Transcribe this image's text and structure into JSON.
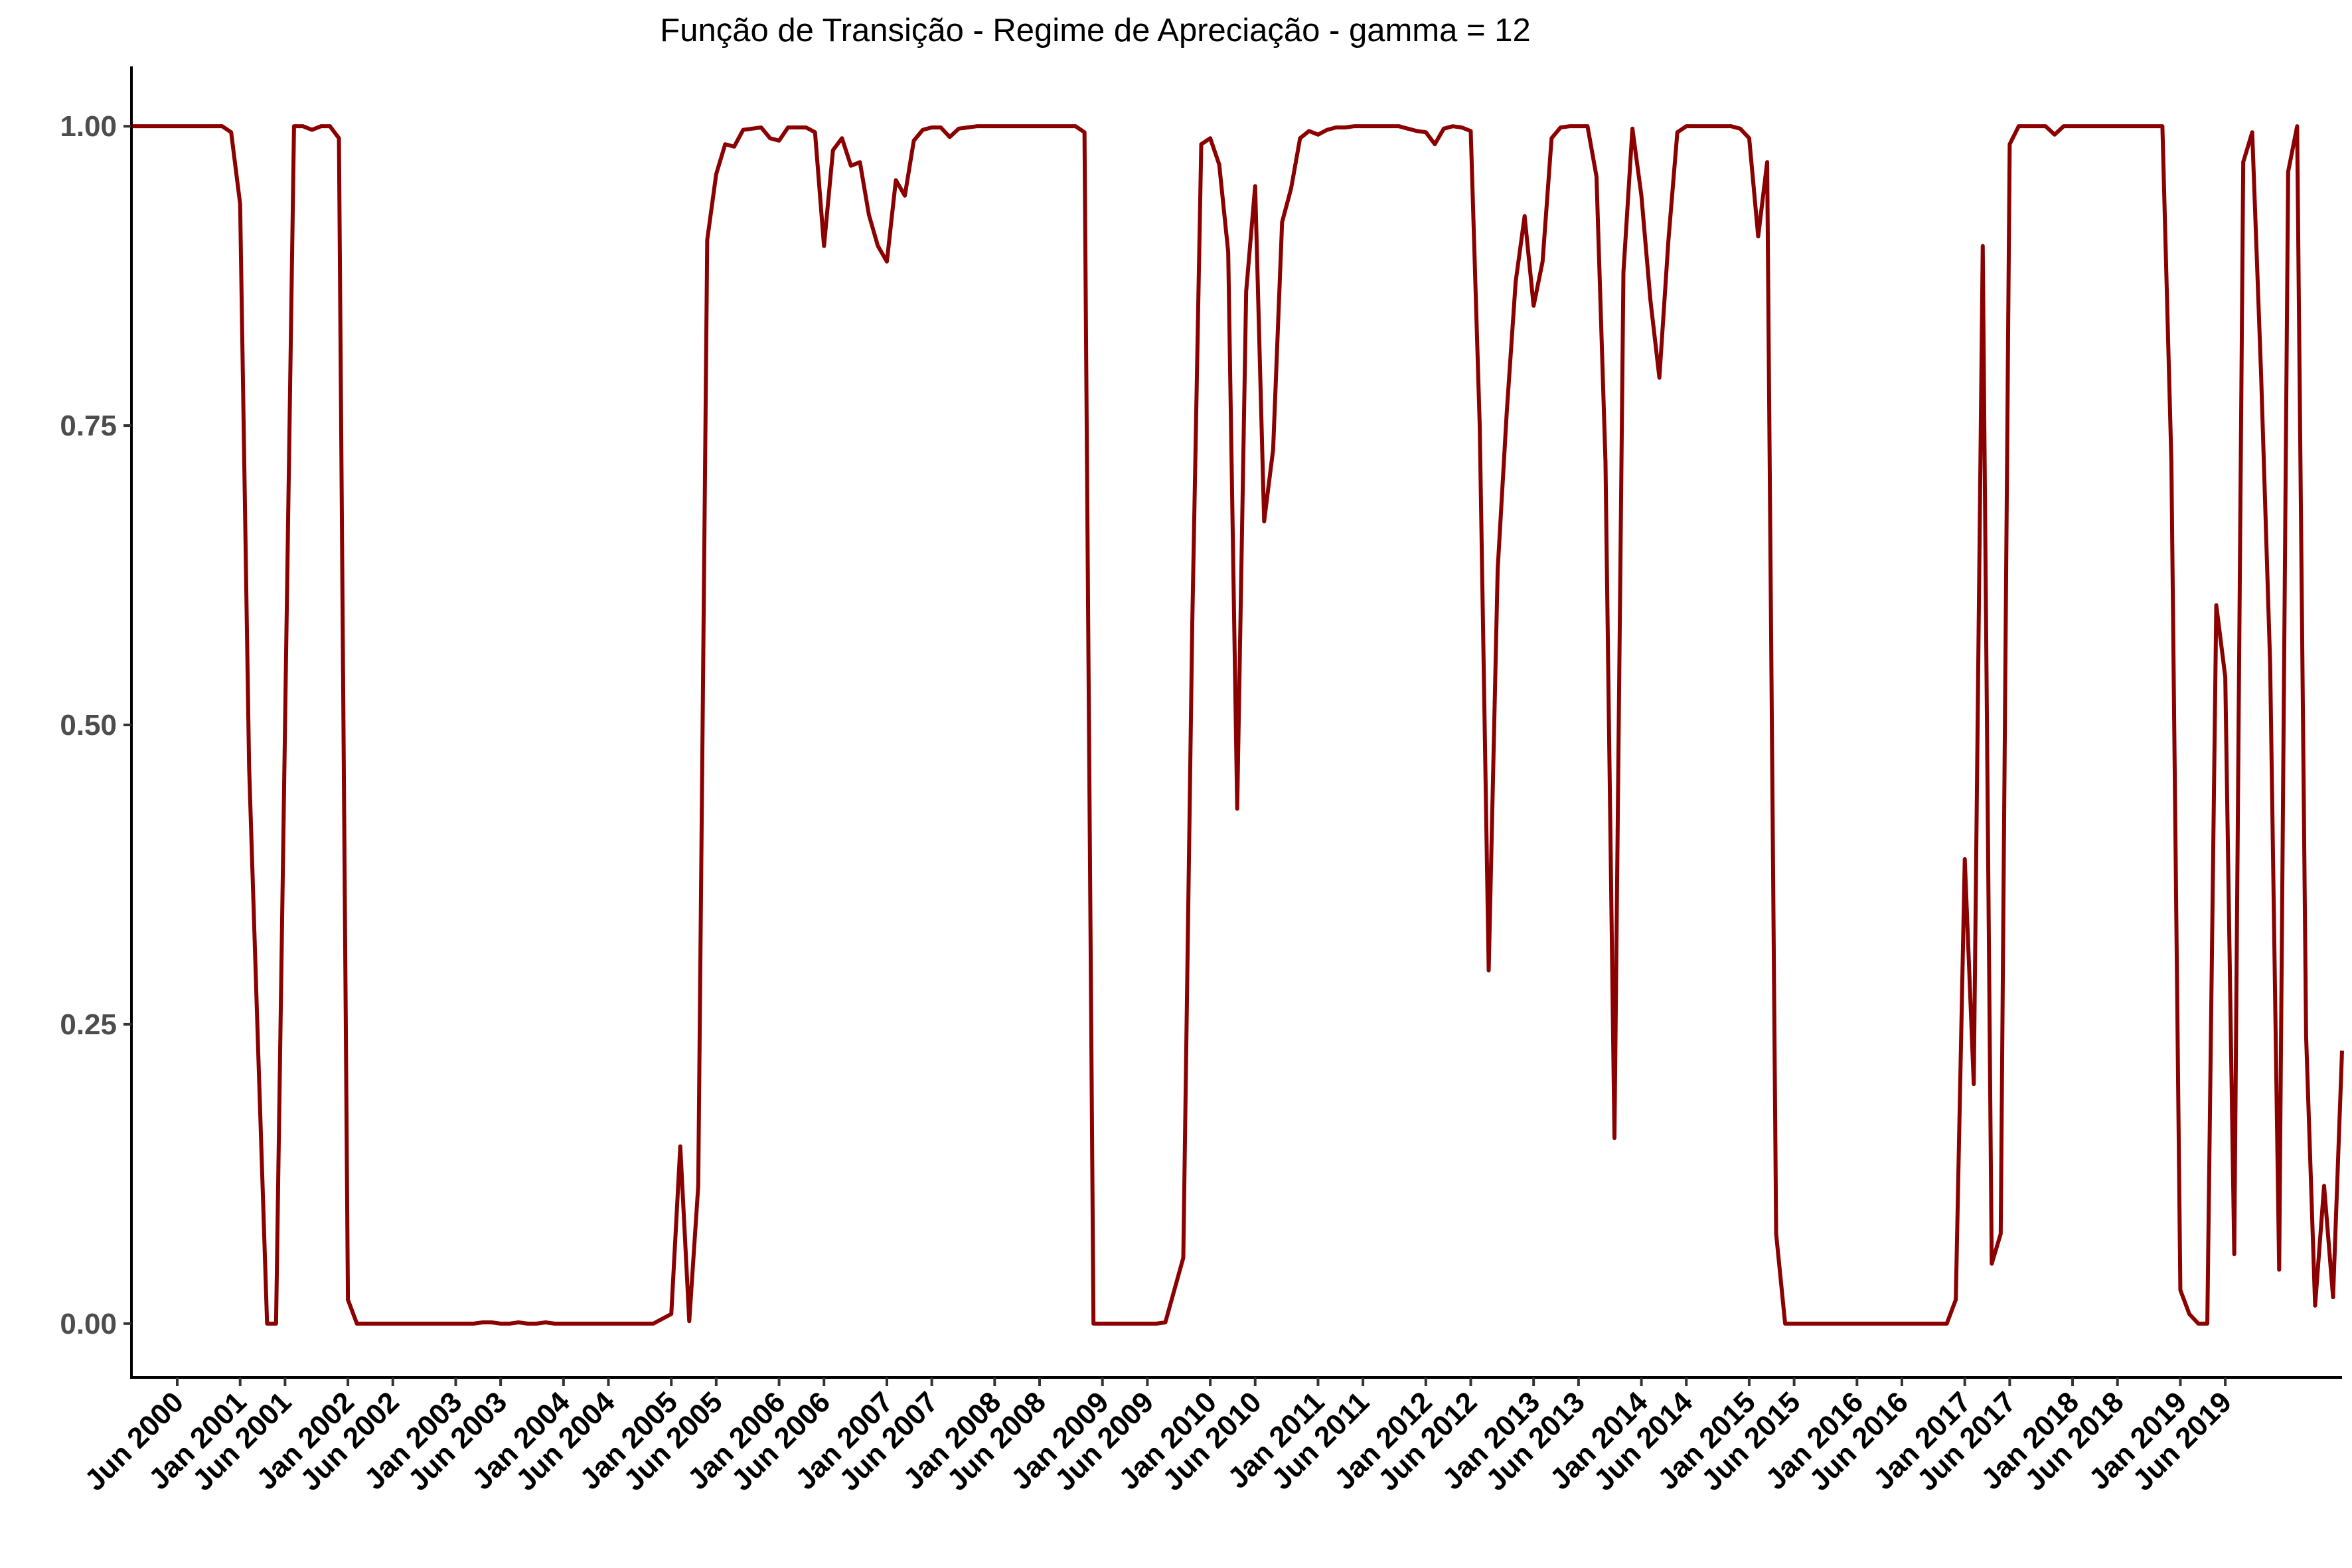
{
  "chart_data": {
    "type": "line",
    "title": "Função de Transição - Regime de Apreciação - gamma = 12",
    "xlabel": "",
    "ylabel": "",
    "ylim": [
      -0.045,
      1.05
    ],
    "grid": false,
    "legend": "none",
    "colors": {
      "line": "#8b0000",
      "axis": "#000000",
      "ytick_text": "#4d4d4d",
      "background": "#ffffff"
    },
    "y_ticks": [
      {
        "value": 0.0,
        "label": "0.00"
      },
      {
        "value": 0.25,
        "label": "0.25"
      },
      {
        "value": 0.5,
        "label": "0.50"
      },
      {
        "value": 0.75,
        "label": "0.75"
      },
      {
        "value": 1.0,
        "label": "1.00"
      }
    ],
    "x_ticks": [
      {
        "date": "2000-06",
        "label": "Jun 2000"
      },
      {
        "date": "2001-01",
        "label": "Jan 2001"
      },
      {
        "date": "2001-06",
        "label": "Jun 2001"
      },
      {
        "date": "2002-01",
        "label": "Jan 2002"
      },
      {
        "date": "2002-06",
        "label": "Jun 2002"
      },
      {
        "date": "2003-01",
        "label": "Jan 2003"
      },
      {
        "date": "2003-06",
        "label": "Jun 2003"
      },
      {
        "date": "2004-01",
        "label": "Jan 2004"
      },
      {
        "date": "2004-06",
        "label": "Jun 2004"
      },
      {
        "date": "2005-01",
        "label": "Jan 2005"
      },
      {
        "date": "2005-06",
        "label": "Jun 2005"
      },
      {
        "date": "2006-01",
        "label": "Jan 2006"
      },
      {
        "date": "2006-06",
        "label": "Jun 2006"
      },
      {
        "date": "2007-01",
        "label": "Jan 2007"
      },
      {
        "date": "2007-06",
        "label": "Jun 2007"
      },
      {
        "date": "2008-01",
        "label": "Jan 2008"
      },
      {
        "date": "2008-06",
        "label": "Jun 2008"
      },
      {
        "date": "2009-01",
        "label": "Jan 2009"
      },
      {
        "date": "2009-06",
        "label": "Jun 2009"
      },
      {
        "date": "2010-01",
        "label": "Jan 2010"
      },
      {
        "date": "2010-06",
        "label": "Jun 2010"
      },
      {
        "date": "2011-01",
        "label": "Jan 2011"
      },
      {
        "date": "2011-06",
        "label": "Jun 2011"
      },
      {
        "date": "2012-01",
        "label": "Jan 2012"
      },
      {
        "date": "2012-06",
        "label": "Jun 2012"
      },
      {
        "date": "2013-01",
        "label": "Jan 2013"
      },
      {
        "date": "2013-06",
        "label": "Jun 2013"
      },
      {
        "date": "2014-01",
        "label": "Jan 2014"
      },
      {
        "date": "2014-06",
        "label": "Jun 2014"
      },
      {
        "date": "2015-01",
        "label": "Jan 2015"
      },
      {
        "date": "2015-06",
        "label": "Jun 2015"
      },
      {
        "date": "2016-01",
        "label": "Jan 2016"
      },
      {
        "date": "2016-06",
        "label": "Jun 2016"
      },
      {
        "date": "2017-01",
        "label": "Jan 2017"
      },
      {
        "date": "2017-06",
        "label": "Jun 2017"
      },
      {
        "date": "2018-01",
        "label": "Jan 2018"
      },
      {
        "date": "2018-06",
        "label": "Jun 2018"
      },
      {
        "date": "2019-01",
        "label": "Jan 2019"
      },
      {
        "date": "2019-06",
        "label": "Jun 2019"
      }
    ],
    "series": [
      {
        "points": [
          [
            "2000-01",
            1.0
          ],
          [
            "2000-02",
            1.0
          ],
          [
            "2000-03",
            1.0
          ],
          [
            "2000-04",
            1.0
          ],
          [
            "2000-05",
            1.0
          ],
          [
            "2000-06",
            1.0
          ],
          [
            "2000-07",
            1.0
          ],
          [
            "2000-08",
            1.0
          ],
          [
            "2000-09",
            1.0
          ],
          [
            "2000-10",
            1.0
          ],
          [
            "2000-11",
            1.0
          ],
          [
            "2000-12",
            0.995
          ],
          [
            "2001-01",
            0.935
          ],
          [
            "2001-02",
            0.465
          ],
          [
            "2001-03",
            0.23
          ],
          [
            "2001-04",
            0.0
          ],
          [
            "2001-05",
            0.0
          ],
          [
            "2001-06",
            0.5
          ],
          [
            "2001-07",
            1.0
          ],
          [
            "2001-08",
            1.0
          ],
          [
            "2001-09",
            0.997
          ],
          [
            "2001-10",
            1.0
          ],
          [
            "2001-11",
            1.0
          ],
          [
            "2001-12",
            0.99
          ],
          [
            "2002-01",
            0.02
          ],
          [
            "2002-02",
            0.0
          ],
          [
            "2002-03",
            0.0
          ],
          [
            "2002-04",
            0.0
          ],
          [
            "2002-05",
            0.0
          ],
          [
            "2002-06",
            0.0
          ],
          [
            "2002-07",
            0.0
          ],
          [
            "2002-08",
            0.0
          ],
          [
            "2002-09",
            0.0
          ],
          [
            "2002-10",
            0.0
          ],
          [
            "2002-11",
            0.0
          ],
          [
            "2002-12",
            0.0
          ],
          [
            "2003-01",
            0.0
          ],
          [
            "2003-02",
            0.0
          ],
          [
            "2003-03",
            0.0
          ],
          [
            "2003-04",
            0.001
          ],
          [
            "2003-05",
            0.001
          ],
          [
            "2003-06",
            0.0
          ],
          [
            "2003-07",
            0.0
          ],
          [
            "2003-08",
            0.001
          ],
          [
            "2003-09",
            0.0
          ],
          [
            "2003-10",
            0.0
          ],
          [
            "2003-11",
            0.001
          ],
          [
            "2003-12",
            0.0
          ],
          [
            "2004-01",
            0.0
          ],
          [
            "2004-02",
            0.0
          ],
          [
            "2004-03",
            0.0
          ],
          [
            "2004-04",
            0.0
          ],
          [
            "2004-05",
            0.0
          ],
          [
            "2004-06",
            0.0
          ],
          [
            "2004-07",
            0.0
          ],
          [
            "2004-08",
            0.0
          ],
          [
            "2004-09",
            0.0
          ],
          [
            "2004-10",
            0.0
          ],
          [
            "2004-11",
            0.0
          ],
          [
            "2004-12",
            0.004
          ],
          [
            "2005-01",
            0.008
          ],
          [
            "2005-02",
            0.148
          ],
          [
            "2005-03",
            0.002
          ],
          [
            "2005-04",
            0.115
          ],
          [
            "2005-05",
            0.905
          ],
          [
            "2005-06",
            0.96
          ],
          [
            "2005-07",
            0.985
          ],
          [
            "2005-08",
            0.983
          ],
          [
            "2005-09",
            0.997
          ],
          [
            "2005-10",
            0.998
          ],
          [
            "2005-11",
            0.999
          ],
          [
            "2005-12",
            0.99
          ],
          [
            "2006-01",
            0.988
          ],
          [
            "2006-02",
            0.999
          ],
          [
            "2006-03",
            0.999
          ],
          [
            "2006-04",
            0.999
          ],
          [
            "2006-05",
            0.995
          ],
          [
            "2006-06",
            0.9
          ],
          [
            "2006-07",
            0.98
          ],
          [
            "2006-08",
            0.99
          ],
          [
            "2006-09",
            0.967
          ],
          [
            "2006-10",
            0.97
          ],
          [
            "2006-11",
            0.926
          ],
          [
            "2006-12",
            0.9
          ],
          [
            "2007-01",
            0.887
          ],
          [
            "2007-02",
            0.955
          ],
          [
            "2007-03",
            0.942
          ],
          [
            "2007-04",
            0.988
          ],
          [
            "2007-05",
            0.997
          ],
          [
            "2007-06",
            0.999
          ],
          [
            "2007-07",
            0.999
          ],
          [
            "2007-08",
            0.991
          ],
          [
            "2007-09",
            0.998
          ],
          [
            "2007-10",
            0.999
          ],
          [
            "2007-11",
            1.0
          ],
          [
            "2007-12",
            1.0
          ],
          [
            "2008-01",
            1.0
          ],
          [
            "2008-02",
            1.0
          ],
          [
            "2008-03",
            1.0
          ],
          [
            "2008-04",
            1.0
          ],
          [
            "2008-05",
            1.0
          ],
          [
            "2008-06",
            1.0
          ],
          [
            "2008-07",
            1.0
          ],
          [
            "2008-08",
            1.0
          ],
          [
            "2008-09",
            1.0
          ],
          [
            "2008-10",
            1.0
          ],
          [
            "2008-11",
            0.995
          ],
          [
            "2008-12",
            0.0
          ],
          [
            "2009-01",
            0.0
          ],
          [
            "2009-02",
            0.0
          ],
          [
            "2009-03",
            0.0
          ],
          [
            "2009-04",
            0.0
          ],
          [
            "2009-05",
            0.0
          ],
          [
            "2009-06",
            0.0
          ],
          [
            "2009-07",
            0.0
          ],
          [
            "2009-08",
            0.001
          ],
          [
            "2009-09",
            0.028
          ],
          [
            "2009-10",
            0.055
          ],
          [
            "2009-11",
            0.585
          ],
          [
            "2009-12",
            0.985
          ],
          [
            "2010-01",
            0.99
          ],
          [
            "2010-02",
            0.968
          ],
          [
            "2010-03",
            0.895
          ],
          [
            "2010-04",
            0.43
          ],
          [
            "2010-05",
            0.862
          ],
          [
            "2010-06",
            0.95
          ],
          [
            "2010-07",
            0.67
          ],
          [
            "2010-08",
            0.73
          ],
          [
            "2010-09",
            0.92
          ],
          [
            "2010-10",
            0.948
          ],
          [
            "2010-11",
            0.99
          ],
          [
            "2010-12",
            0.996
          ],
          [
            "2011-01",
            0.993
          ],
          [
            "2011-02",
            0.997
          ],
          [
            "2011-03",
            0.999
          ],
          [
            "2011-04",
            0.999
          ],
          [
            "2011-05",
            1.0
          ],
          [
            "2011-06",
            1.0
          ],
          [
            "2011-07",
            1.0
          ],
          [
            "2011-08",
            1.0
          ],
          [
            "2011-09",
            1.0
          ],
          [
            "2011-10",
            1.0
          ],
          [
            "2011-11",
            0.998
          ],
          [
            "2011-12",
            0.996
          ],
          [
            "2012-01",
            0.995
          ],
          [
            "2012-02",
            0.985
          ],
          [
            "2012-03",
            0.998
          ],
          [
            "2012-04",
            1.0
          ],
          [
            "2012-05",
            0.999
          ],
          [
            "2012-06",
            0.996
          ],
          [
            "2012-07",
            0.75
          ],
          [
            "2012-08",
            0.295
          ],
          [
            "2012-09",
            0.63
          ],
          [
            "2012-10",
            0.76
          ],
          [
            "2012-11",
            0.87
          ],
          [
            "2012-12",
            0.925
          ],
          [
            "2013-01",
            0.85
          ],
          [
            "2013-02",
            0.887
          ],
          [
            "2013-03",
            0.99
          ],
          [
            "2013-04",
            0.999
          ],
          [
            "2013-05",
            1.0
          ],
          [
            "2013-06",
            1.0
          ],
          [
            "2013-07",
            1.0
          ],
          [
            "2013-08",
            0.958
          ],
          [
            "2013-09",
            0.72
          ],
          [
            "2013-10",
            0.155
          ],
          [
            "2013-11",
            0.878
          ],
          [
            "2013-12",
            0.998
          ],
          [
            "2014-01",
            0.942
          ],
          [
            "2014-02",
            0.855
          ],
          [
            "2014-03",
            0.79
          ],
          [
            "2014-04",
            0.904
          ],
          [
            "2014-05",
            0.995
          ],
          [
            "2014-06",
            1.0
          ],
          [
            "2014-07",
            1.0
          ],
          [
            "2014-08",
            1.0
          ],
          [
            "2014-09",
            1.0
          ],
          [
            "2014-10",
            1.0
          ],
          [
            "2014-11",
            1.0
          ],
          [
            "2014-12",
            0.998
          ],
          [
            "2015-01",
            0.99
          ],
          [
            "2015-02",
            0.908
          ],
          [
            "2015-03",
            0.97
          ],
          [
            "2015-04",
            0.075
          ],
          [
            "2015-05",
            0.0
          ],
          [
            "2015-06",
            0.0
          ],
          [
            "2015-07",
            0.0
          ],
          [
            "2015-08",
            0.0
          ],
          [
            "2015-09",
            0.0
          ],
          [
            "2015-10",
            0.0
          ],
          [
            "2015-11",
            0.0
          ],
          [
            "2015-12",
            0.0
          ],
          [
            "2016-01",
            0.0
          ],
          [
            "2016-02",
            0.0
          ],
          [
            "2016-03",
            0.0
          ],
          [
            "2016-04",
            0.0
          ],
          [
            "2016-05",
            0.0
          ],
          [
            "2016-06",
            0.0
          ],
          [
            "2016-07",
            0.0
          ],
          [
            "2016-08",
            0.0
          ],
          [
            "2016-09",
            0.0
          ],
          [
            "2016-10",
            0.0
          ],
          [
            "2016-11",
            0.0
          ],
          [
            "2016-12",
            0.02
          ],
          [
            "2017-01",
            0.388
          ],
          [
            "2017-02",
            0.2
          ],
          [
            "2017-03",
            0.9
          ],
          [
            "2017-04",
            0.05
          ],
          [
            "2017-05",
            0.075
          ],
          [
            "2017-06",
            0.985
          ],
          [
            "2017-07",
            1.0
          ],
          [
            "2017-08",
            1.0
          ],
          [
            "2017-09",
            1.0
          ],
          [
            "2017-10",
            1.0
          ],
          [
            "2017-11",
            0.993
          ],
          [
            "2017-12",
            1.0
          ],
          [
            "2018-01",
            1.0
          ],
          [
            "2018-02",
            1.0
          ],
          [
            "2018-03",
            1.0
          ],
          [
            "2018-04",
            1.0
          ],
          [
            "2018-05",
            1.0
          ],
          [
            "2018-06",
            1.0
          ],
          [
            "2018-07",
            1.0
          ],
          [
            "2018-08",
            1.0
          ],
          [
            "2018-09",
            1.0
          ],
          [
            "2018-10",
            1.0
          ],
          [
            "2018-11",
            1.0
          ],
          [
            "2018-12",
            0.72
          ],
          [
            "2019-01",
            0.028
          ],
          [
            "2019-02",
            0.008
          ],
          [
            "2019-03",
            0.0
          ],
          [
            "2019-04",
            0.0
          ],
          [
            "2019-05",
            0.6
          ],
          [
            "2019-06",
            0.54
          ],
          [
            "2019-07",
            0.058
          ],
          [
            "2019-08",
            0.97
          ],
          [
            "2019-09",
            0.995
          ],
          [
            "2019-10",
            0.79
          ],
          [
            "2019-11",
            0.55
          ],
          [
            "2019-12",
            0.045
          ],
          [
            "2020-01",
            0.962
          ],
          [
            "2020-02",
            1.0
          ],
          [
            "2020-03",
            0.24
          ],
          [
            "2020-04",
            0.015
          ],
          [
            "2020-05",
            0.115
          ],
          [
            "2020-06",
            0.022
          ],
          [
            "2020-07",
            0.228
          ]
        ]
      }
    ]
  }
}
